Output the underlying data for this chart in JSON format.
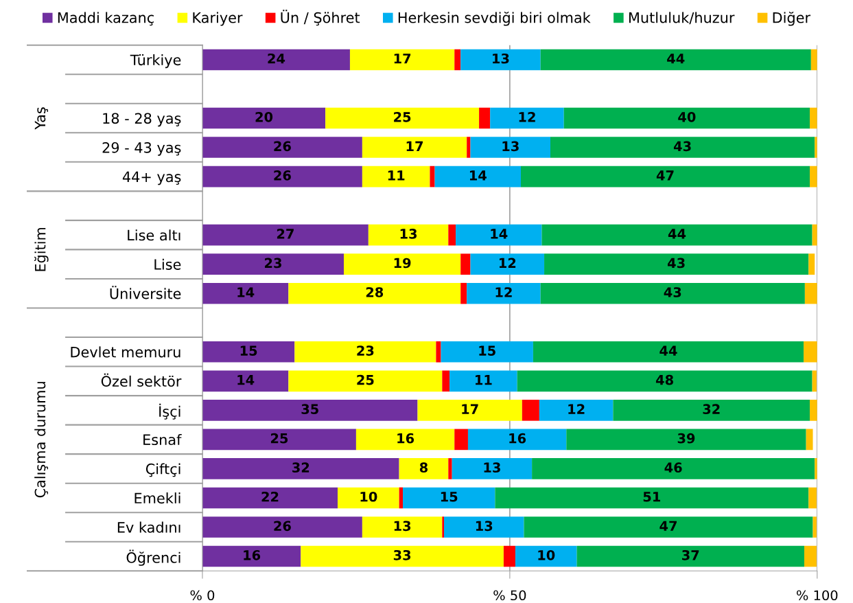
{
  "chart_data": {
    "type": "bar",
    "orientation": "horizontal",
    "stacked": true,
    "categories": [
      "Türkiye",
      null,
      "18 - 28 yaş",
      "29 - 43 yaş",
      "44+ yaş",
      null,
      "Lise altı",
      "Lise",
      "Üniversite",
      null,
      "Devlet memuru",
      "Özel sektör",
      "İşçi",
      "Esnaf",
      "Çiftçi",
      "Emekli",
      "Ev kadını",
      "Öğrenci"
    ],
    "series": [
      {
        "name": "Maddi kazanç",
        "color": "#7030a0",
        "values": [
          24,
          null,
          20,
          26,
          26,
          null,
          27,
          23,
          14,
          null,
          15,
          14,
          35,
          25,
          32,
          22,
          26,
          16
        ],
        "value_labels": [
          "24",
          null,
          "20",
          "26",
          "26",
          null,
          "27",
          "23",
          "14",
          null,
          "15",
          "14",
          "35",
          "25",
          "32",
          "22",
          "26",
          "16"
        ]
      },
      {
        "name": "Kariyer",
        "color": "#ffff00",
        "values": [
          17,
          null,
          25,
          17,
          11,
          null,
          13,
          19,
          28,
          null,
          23,
          25,
          17,
          16,
          8,
          10,
          13,
          33
        ],
        "value_labels": [
          "17",
          null,
          "25",
          "17",
          "11",
          null,
          "13",
          "19",
          "28",
          null,
          "23",
          "25",
          "17",
          "16",
          "8",
          "10",
          "13",
          "33"
        ]
      },
      {
        "name": "Ün / Şöhret",
        "color": "#ff0000",
        "values": [
          1,
          null,
          1.8,
          0.6,
          0.8,
          null,
          1.2,
          1.6,
          1,
          null,
          0.8,
          1.2,
          2.8,
          2.2,
          0.6,
          0.6,
          0.3,
          1.9
        ]
      },
      {
        "name": "Herkesin sevdiği biri olmak",
        "color": "#00b0f0",
        "values": [
          13,
          null,
          12,
          13,
          14,
          null,
          14,
          12,
          12,
          null,
          15,
          11,
          12,
          16,
          13,
          15,
          13,
          10
        ],
        "value_labels": [
          "13",
          null,
          "12",
          "13",
          "14",
          null,
          "14",
          "12",
          "12",
          null,
          "15",
          "11",
          "12",
          "16",
          "13",
          "15",
          "13",
          "10"
        ]
      },
      {
        "name": "Mutluluk/huzur",
        "color": "#00b050",
        "values": [
          44,
          null,
          40,
          43,
          47,
          null,
          44,
          43,
          43,
          null,
          44,
          48,
          32,
          39,
          46,
          51,
          47,
          37
        ],
        "value_labels": [
          "44",
          null,
          "40",
          "43",
          "47",
          null,
          "44",
          "43",
          "43",
          null,
          "44",
          "48",
          "32",
          "39",
          "46",
          "51",
          "47",
          "37"
        ]
      },
      {
        "name": "Diğer",
        "color": "#ffc000",
        "values": [
          1,
          null,
          1.2,
          0.4,
          1.2,
          null,
          0.8,
          1,
          2,
          null,
          2.2,
          0.7,
          1.2,
          1.1,
          0.4,
          1.3,
          0.6,
          2
        ]
      }
    ],
    "annotations": [
      "Yaş",
      "Eğitim",
      "Çalışma durumu"
    ],
    "xlim": [
      0,
      100
    ],
    "xticks": [
      {
        "value": 0,
        "label": "% 0"
      },
      {
        "value": 50,
        "label": "% 50"
      },
      {
        "value": 100,
        "label": "% 100"
      }
    ],
    "grid": "x",
    "legend": "top"
  }
}
